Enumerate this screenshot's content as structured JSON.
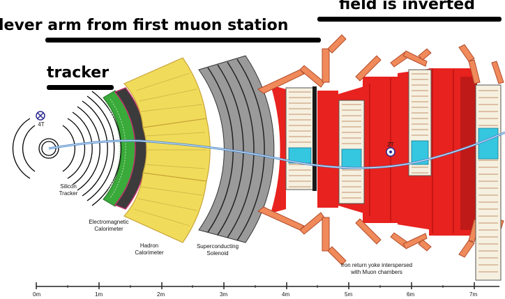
{
  "headings": {
    "field_inverted": "field is inverted",
    "lever_arm": "lever arm from first muon station",
    "tracker": "tracker"
  },
  "labels": {
    "field_4t": "4T",
    "field_2t": "2T",
    "silicon_tracker_l1": "Silicon",
    "silicon_tracker_l2": "Tracker",
    "ecal_l1": "Electromagnetic",
    "ecal_l2": "Calorimeter",
    "hcal_l1": "Hadron",
    "hcal_l2": "Calorimeter",
    "solenoid_l1": "Superconducting",
    "solenoid_l2": "Solenoid",
    "yoke_l1": "Iron return yoke interspersed",
    "yoke_l2": "with Muon chambers"
  },
  "scale": {
    "ticks": [
      "0m",
      "1m",
      "2m",
      "3m",
      "4m",
      "5m",
      "6m",
      "7m"
    ]
  },
  "colors": {
    "tracker_ring": "#000000",
    "ecal": "#3aaa3a",
    "hcal": "#f0dc5a",
    "hcal_edge": "#c9a43a",
    "solenoid": "#9a9a9a",
    "yoke": "#e8221e",
    "yoke_dark": "#b01010",
    "arms": "#f08a5a",
    "chamber": "#f6f0e0",
    "chamber_hit": "#35c6e0",
    "track": "#4f86c8"
  }
}
